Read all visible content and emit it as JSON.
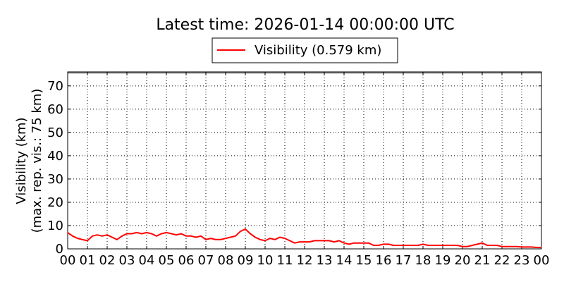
{
  "chart_data": {
    "type": "line",
    "title": "Latest time: 2026-01-14 00:00:00 UTC",
    "ylabel_lines": [
      "Visibility (km)",
      "(max. rep. vis.: 75 km)"
    ],
    "xlabel": "",
    "xlim": [
      0,
      24
    ],
    "ylim": [
      0,
      76
    ],
    "x_ticks": [
      "00",
      "01",
      "02",
      "03",
      "04",
      "05",
      "06",
      "07",
      "08",
      "09",
      "10",
      "11",
      "12",
      "13",
      "14",
      "15",
      "16",
      "17",
      "18",
      "19",
      "20",
      "21",
      "22",
      "23",
      "00"
    ],
    "y_ticks": [
      0,
      10,
      20,
      30,
      40,
      50,
      60,
      70
    ],
    "grid": true,
    "legend_position": "top-center",
    "colors": {
      "series": "#ff0000",
      "grid": "#000000",
      "axes": "#000000",
      "background": "#ffffff"
    },
    "series": [
      {
        "name": "Visibility (0.579 km)",
        "x": [
          0.0,
          0.25,
          0.5,
          0.75,
          1.0,
          1.25,
          1.5,
          1.75,
          2.0,
          2.25,
          2.5,
          2.75,
          3.0,
          3.25,
          3.5,
          3.75,
          4.0,
          4.25,
          4.5,
          4.75,
          5.0,
          5.25,
          5.5,
          5.75,
          6.0,
          6.25,
          6.5,
          6.75,
          7.0,
          7.25,
          7.5,
          7.75,
          8.0,
          8.25,
          8.5,
          8.75,
          9.0,
          9.25,
          9.5,
          9.75,
          10.0,
          10.25,
          10.5,
          10.75,
          11.0,
          11.25,
          11.5,
          11.75,
          12.0,
          12.25,
          12.5,
          12.75,
          13.0,
          13.25,
          13.5,
          13.75,
          14.0,
          14.25,
          14.5,
          14.75,
          15.0,
          15.25,
          15.5,
          15.75,
          16.0,
          16.25,
          16.5,
          16.75,
          17.0,
          17.25,
          17.5,
          17.75,
          18.0,
          18.25,
          18.5,
          18.75,
          19.0,
          19.25,
          19.5,
          19.75,
          20.0,
          20.25,
          20.5,
          20.75,
          21.0,
          21.25,
          21.5,
          21.75,
          22.0,
          22.25,
          22.5,
          22.75,
          23.0,
          23.25,
          23.5,
          23.75,
          24.0
        ],
        "values": [
          7.0,
          5.5,
          4.5,
          4.0,
          3.5,
          5.5,
          6.0,
          5.5,
          6.0,
          5.0,
          4.0,
          5.5,
          6.5,
          6.5,
          7.0,
          6.5,
          7.0,
          6.5,
          5.5,
          6.5,
          7.0,
          6.5,
          6.0,
          6.5,
          5.5,
          5.5,
          5.0,
          5.5,
          4.0,
          4.5,
          4.0,
          4.0,
          4.5,
          5.0,
          5.5,
          7.5,
          8.5,
          6.5,
          5.0,
          4.0,
          3.5,
          4.5,
          4.0,
          5.0,
          4.5,
          3.5,
          2.5,
          3.0,
          3.0,
          3.0,
          3.5,
          3.5,
          3.5,
          3.5,
          3.0,
          3.5,
          2.5,
          2.0,
          2.5,
          2.5,
          2.5,
          2.5,
          1.5,
          1.5,
          2.0,
          2.0,
          1.5,
          1.5,
          1.5,
          1.5,
          1.5,
          1.5,
          2.0,
          1.5,
          1.5,
          1.5,
          1.5,
          1.5,
          1.5,
          1.5,
          1.0,
          1.0,
          1.5,
          2.0,
          2.5,
          1.5,
          1.5,
          1.5,
          1.0,
          1.0,
          1.0,
          1.0,
          0.8,
          0.8,
          0.8,
          0.6,
          0.579
        ]
      }
    ]
  }
}
